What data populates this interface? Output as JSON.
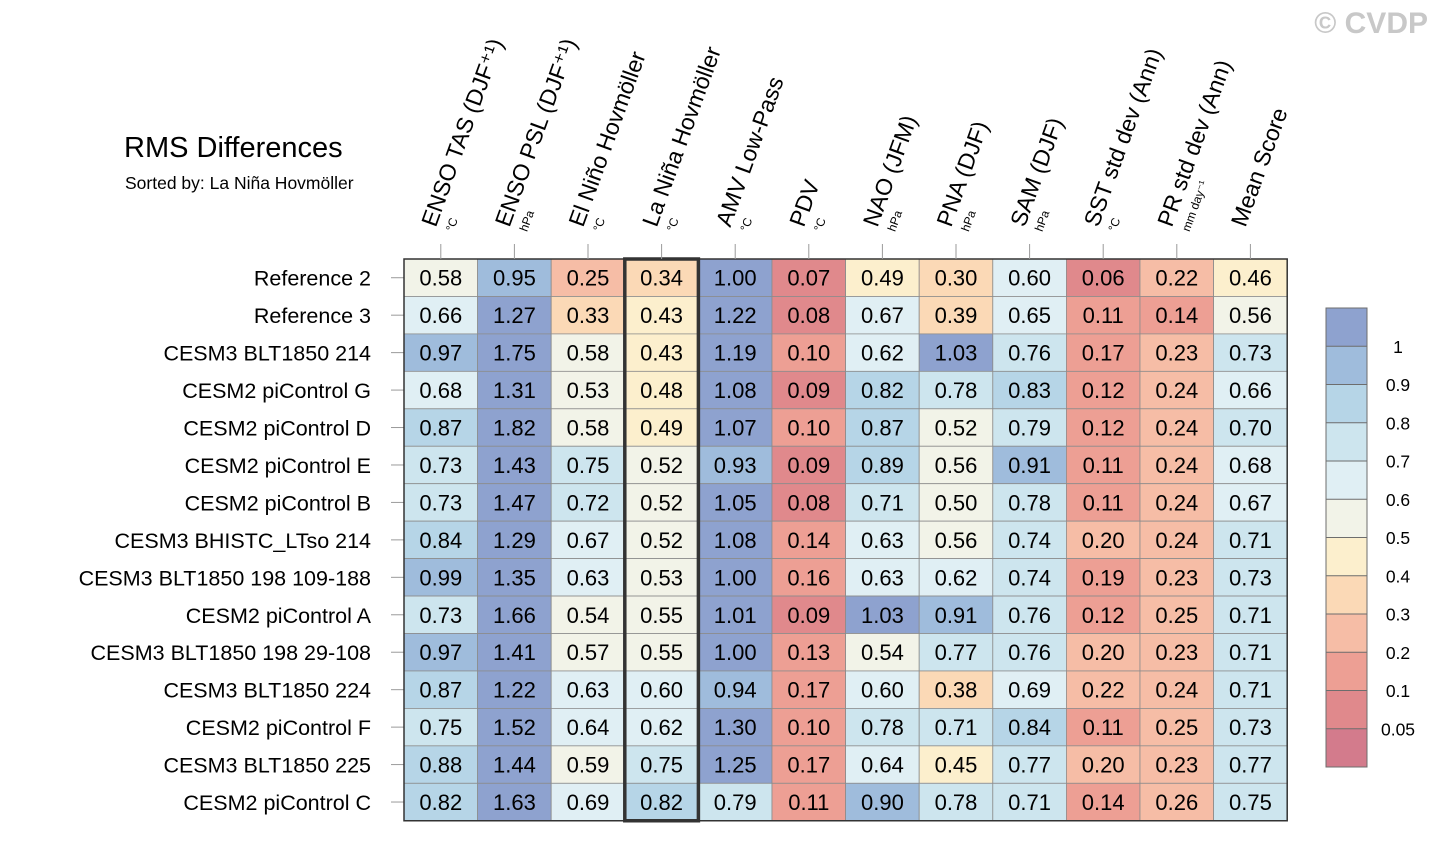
{
  "title": "RMS Differences",
  "subtitle": "Sorted by: La Niña Hovmöller",
  "watermark": "© CVDP",
  "chart_data": {
    "type": "heatmap",
    "highlighted_column": "La Niña Hovmöller",
    "columns": [
      {
        "label": "ENSO TAS (DJF⁺¹)",
        "unit": "°C"
      },
      {
        "label": "ENSO PSL (DJF⁺¹)",
        "unit": "hPa"
      },
      {
        "label": "El Niño Hovmöller",
        "unit": "°C"
      },
      {
        "label": "La Niña Hovmöller",
        "unit": "°C"
      },
      {
        "label": "AMV Low-Pass",
        "unit": "°C"
      },
      {
        "label": "PDV",
        "unit": "°C"
      },
      {
        "label": "NAO (JFM)",
        "unit": "hPa"
      },
      {
        "label": "PNA (DJF)",
        "unit": "hPa"
      },
      {
        "label": "SAM (DJF)",
        "unit": "hPa"
      },
      {
        "label": "SST std dev (Ann)",
        "unit": "°C"
      },
      {
        "label": "PR std dev (Ann)",
        "unit": "mm day⁻¹"
      },
      {
        "label": "Mean Score",
        "unit": ""
      }
    ],
    "rows": [
      {
        "label": "Reference 2",
        "values": [
          "0.58",
          "0.95",
          "0.25",
          "0.34",
          "1.00",
          "0.07",
          "0.49",
          "0.30",
          "0.60",
          "0.06",
          "0.22",
          "0.46"
        ]
      },
      {
        "label": "Reference 3",
        "values": [
          "0.66",
          "1.27",
          "0.33",
          "0.43",
          "1.22",
          "0.08",
          "0.67",
          "0.39",
          "0.65",
          "0.11",
          "0.14",
          "0.56"
        ]
      },
      {
        "label": "CESM3 BLT1850 214",
        "values": [
          "0.97",
          "1.75",
          "0.58",
          "0.43",
          "1.19",
          "0.10",
          "0.62",
          "1.03",
          "0.76",
          "0.17",
          "0.23",
          "0.73"
        ]
      },
      {
        "label": "CESM2 piControl G",
        "values": [
          "0.68",
          "1.31",
          "0.53",
          "0.48",
          "1.08",
          "0.09",
          "0.82",
          "0.78",
          "0.83",
          "0.12",
          "0.24",
          "0.66"
        ]
      },
      {
        "label": "CESM2 piControl D",
        "values": [
          "0.87",
          "1.82",
          "0.58",
          "0.49",
          "1.07",
          "0.10",
          "0.87",
          "0.52",
          "0.79",
          "0.12",
          "0.24",
          "0.70"
        ]
      },
      {
        "label": "CESM2 piControl E",
        "values": [
          "0.73",
          "1.43",
          "0.75",
          "0.52",
          "0.93",
          "0.09",
          "0.89",
          "0.56",
          "0.91",
          "0.11",
          "0.24",
          "0.68"
        ]
      },
      {
        "label": "CESM2 piControl B",
        "values": [
          "0.73",
          "1.47",
          "0.72",
          "0.52",
          "1.05",
          "0.08",
          "0.71",
          "0.50",
          "0.78",
          "0.11",
          "0.24",
          "0.67"
        ]
      },
      {
        "label": "CESM3 BHISTC_LTso 214",
        "values": [
          "0.84",
          "1.29",
          "0.67",
          "0.52",
          "1.08",
          "0.14",
          "0.63",
          "0.56",
          "0.74",
          "0.20",
          "0.24",
          "0.71"
        ]
      },
      {
        "label": "CESM3 BLT1850 198 109-188",
        "values": [
          "0.99",
          "1.35",
          "0.63",
          "0.53",
          "1.00",
          "0.16",
          "0.63",
          "0.62",
          "0.74",
          "0.19",
          "0.23",
          "0.73"
        ]
      },
      {
        "label": "CESM2 piControl A",
        "values": [
          "0.73",
          "1.66",
          "0.54",
          "0.55",
          "1.01",
          "0.09",
          "1.03",
          "0.91",
          "0.76",
          "0.12",
          "0.25",
          "0.71"
        ]
      },
      {
        "label": "CESM3 BLT1850 198 29-108",
        "values": [
          "0.97",
          "1.41",
          "0.57",
          "0.55",
          "1.00",
          "0.13",
          "0.54",
          "0.77",
          "0.76",
          "0.20",
          "0.23",
          "0.71"
        ]
      },
      {
        "label": "CESM3 BLT1850 224",
        "values": [
          "0.87",
          "1.22",
          "0.63",
          "0.60",
          "0.94",
          "0.17",
          "0.60",
          "0.38",
          "0.69",
          "0.22",
          "0.24",
          "0.71"
        ]
      },
      {
        "label": "CESM2 piControl F",
        "values": [
          "0.75",
          "1.52",
          "0.64",
          "0.62",
          "1.30",
          "0.10",
          "0.78",
          "0.71",
          "0.84",
          "0.11",
          "0.25",
          "0.73"
        ]
      },
      {
        "label": "CESM3 BLT1850 225",
        "values": [
          "0.88",
          "1.44",
          "0.59",
          "0.75",
          "1.25",
          "0.17",
          "0.64",
          "0.45",
          "0.77",
          "0.20",
          "0.23",
          "0.77"
        ]
      },
      {
        "label": "CESM2 piControl C",
        "values": [
          "0.82",
          "1.63",
          "0.69",
          "0.82",
          "0.79",
          "0.11",
          "0.90",
          "0.78",
          "0.71",
          "0.14",
          "0.26",
          "0.75"
        ]
      }
    ],
    "colorbar": {
      "levels": [
        0.05,
        0.1,
        0.2,
        0.3,
        0.4,
        0.5,
        0.6,
        0.7,
        0.8,
        0.9,
        1
      ],
      "tick_labels": [
        "1",
        "0.9",
        "0.8",
        "0.7",
        "0.6",
        "0.5",
        "0.4",
        "0.3",
        "0.2",
        "0.1",
        "0.05"
      ],
      "colors": [
        "#d37b8c",
        "#e0898c",
        "#ed9f94",
        "#f6bda6",
        "#fbd9b6",
        "#fcefcd",
        "#f2f3e8",
        "#e0eff4",
        "#cde5ee",
        "#b6d5e7",
        "#9fbcdc",
        "#8ea2cf"
      ]
    }
  }
}
